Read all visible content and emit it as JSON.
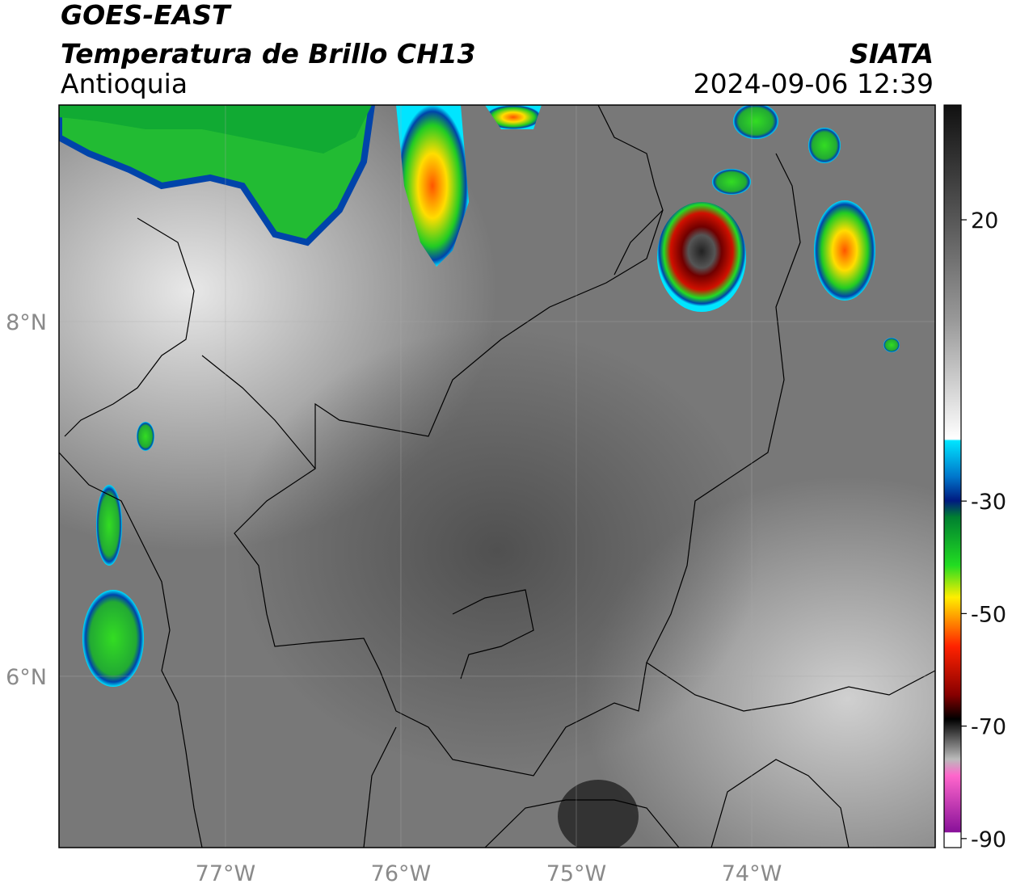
{
  "header": {
    "title": "GOES-EAST",
    "subtitle": "Temperatura de Brillo CH13",
    "region": "Antioquia",
    "source": "SIATA",
    "datetime": "2024-09-06 12:39"
  },
  "map": {
    "lon_range": [
      -77.949,
      -72.954
    ],
    "lat_range": [
      5.034,
      9.221
    ],
    "lon_ticks": [
      {
        "value": -77,
        "label": "77°W"
      },
      {
        "value": -76,
        "label": "76°W"
      },
      {
        "value": -75,
        "label": "75°W"
      },
      {
        "value": -74,
        "label": "74°W"
      }
    ],
    "lat_ticks": [
      {
        "value": 8,
        "label": "8°N"
      },
      {
        "value": 6,
        "label": "6°N"
      }
    ]
  },
  "colorbar": {
    "range": [
      -91.6,
      40.4
    ],
    "ticks": [
      20,
      -30,
      -50,
      -70,
      -90
    ]
  }
}
